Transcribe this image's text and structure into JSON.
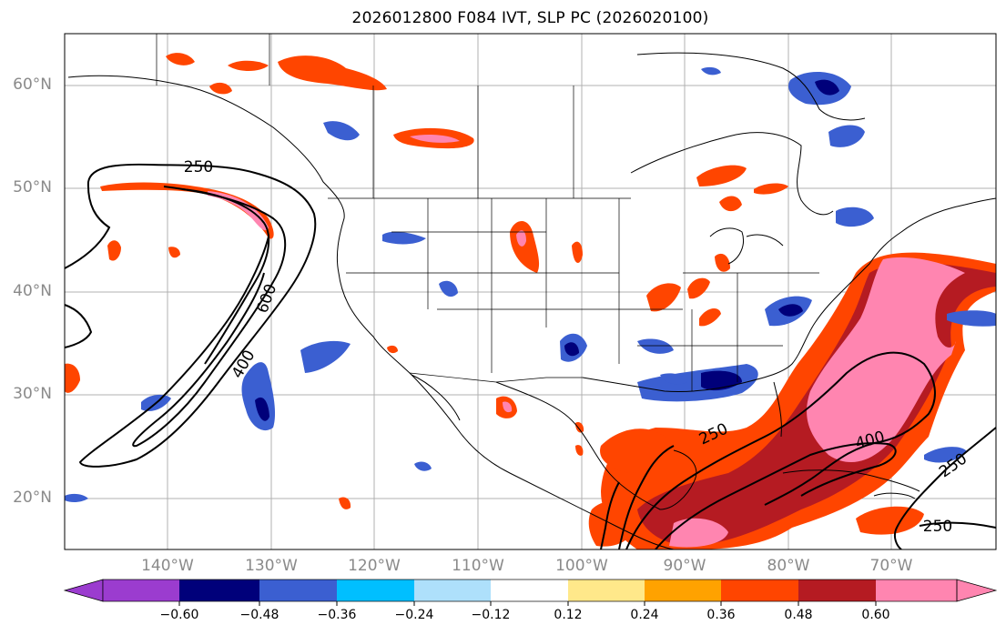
{
  "title": "2026012800 F084 IVT, SLP PC (2026020100)",
  "lat_labels": [
    "60°N",
    "50°N",
    "40°N",
    "30°N",
    "20°N"
  ],
  "lon_labels": [
    "140°W",
    "130°W",
    "120°W",
    "110°W",
    "100°W",
    "90°W",
    "80°W",
    "70°W"
  ],
  "contour_labels": [
    "250",
    "600",
    "400",
    "250",
    "400",
    "250",
    "250"
  ],
  "colorbar": {
    "ticks": [
      "−0.60",
      "−0.48",
      "−0.36",
      "−0.24",
      "−0.12",
      "0.12",
      "0.24",
      "0.36",
      "0.48",
      "0.60"
    ],
    "colors": [
      "#9b3ccf",
      "#00007a",
      "#3b5fd1",
      "#00bfff",
      "#aee0fb",
      "#ffffff",
      "#ffe88a",
      "#ffa200",
      "#ff4500",
      "#b51b22",
      "#ff85b0"
    ]
  }
}
